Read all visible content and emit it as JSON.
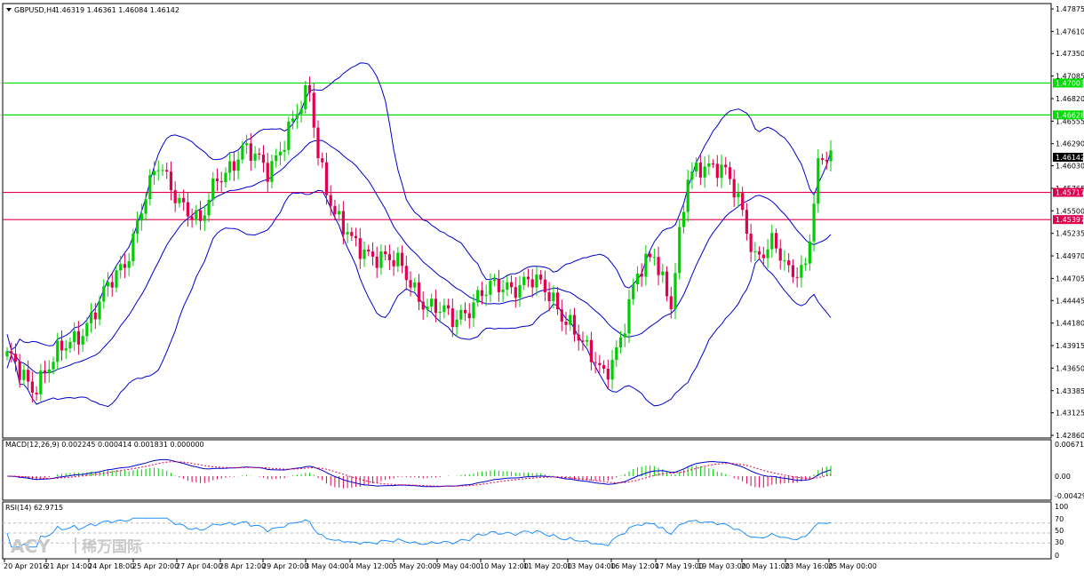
{
  "header": {
    "symbol": "GBPUSD,H4",
    "ohlc": "1.46319 1.46361 1.46084 1.46142"
  },
  "price_axis": {
    "labels": [
      "1.47875",
      "1.47610",
      "1.47350",
      "1.47085",
      "1.46820",
      "1.46555",
      "1.46290",
      "1.46030",
      "1.45765",
      "1.45500",
      "1.45235",
      "1.44970",
      "1.44705",
      "1.44445",
      "1.44180",
      "1.43915",
      "1.43650",
      "1.43385",
      "1.43125",
      "1.42860"
    ],
    "current_price": "1.46142",
    "hline_tags": [
      "1.47003",
      "1.46628",
      "1.45717",
      "1.45397"
    ]
  },
  "macd": {
    "label": "MACD(12,26,9) 0.002245 0.000414 0.001831 0.000000",
    "axis_labels": [
      "0.006713",
      "0.00",
      "-0.004296"
    ]
  },
  "rsi": {
    "label": "RSI(14) 62.9715",
    "axis_labels": [
      "100",
      "70",
      "50",
      "30",
      "0"
    ]
  },
  "time_axis": {
    "labels": [
      "20 Apr 2016",
      "21 Apr 14:00",
      "24 Apr 18:00",
      "25 Apr 20:00",
      "27 Apr 04:00",
      "28 Apr 12:00",
      "29 Apr 20:00",
      "3 May 04:00",
      "4 May 12:00",
      "5 May 20:00",
      "9 May 04:00",
      "10 May 12:00",
      "11 May 20:00",
      "13 May 04:00",
      "16 May 12:00",
      "17 May 19:00",
      "19 May 03:00",
      "20 May 11:00",
      "23 May 16:00",
      "25 May 00:00"
    ]
  },
  "watermark": {
    "brand": "ACY",
    "chinese": "稀万国际"
  },
  "colors": {
    "bull": "#00cc00",
    "bear": "#e0004f",
    "bands": "#0000cc",
    "green_line": "#00dd00",
    "red_line": "#e0004f",
    "price_tag": "#000000"
  },
  "chart_data": {
    "type": "candlestick",
    "symbol": "GBPUSD",
    "timeframe": "H4",
    "last_price": 1.46142,
    "horizontal_levels": [
      {
        "price": 1.47003,
        "color": "green"
      },
      {
        "price": 1.46628,
        "color": "green"
      },
      {
        "price": 1.45717,
        "color": "red"
      },
      {
        "price": 1.45397,
        "color": "red"
      }
    ],
    "indicators": [
      "Bollinger Bands",
      "Moving Average",
      "MACD(12,26,9)",
      "RSI(14)"
    ],
    "rsi_last": 62.9715,
    "ylim": [
      1.4286,
      1.47875
    ]
  }
}
